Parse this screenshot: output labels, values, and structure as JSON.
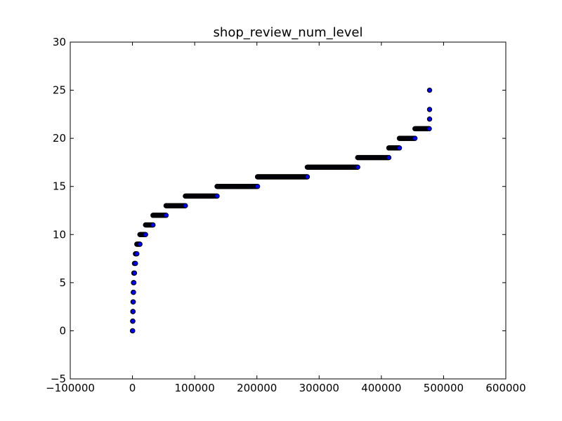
{
  "chart_data": {
    "type": "scatter",
    "title": "shop_review_num_level",
    "xlabel": "",
    "ylabel": "",
    "xlim": [
      -100000,
      600000
    ],
    "ylim": [
      -5,
      30
    ],
    "xticks": [
      -100000,
      0,
      100000,
      200000,
      300000,
      400000,
      500000,
      600000
    ],
    "yticks": [
      -5,
      0,
      5,
      10,
      15,
      20,
      25,
      30
    ],
    "xtick_labels": [
      "−100000",
      "0",
      "100000",
      "200000",
      "300000",
      "400000",
      "500000",
      "600000"
    ],
    "ytick_labels": [
      "−5",
      "0",
      "5",
      "10",
      "15",
      "20",
      "25",
      "30"
    ],
    "grid": false,
    "marker_color": "#0000ff",
    "marker_edge_color": "#000000",
    "series": [
      {
        "note_runs": "each run is a level (y) spanning a contiguous x range of sorted sample indices",
        "runs": [
          {
            "y": 0,
            "x_start": 0,
            "x_end": 300
          },
          {
            "y": 1,
            "x_start": 300,
            "x_end": 600
          },
          {
            "y": 2,
            "x_start": 600,
            "x_end": 900
          },
          {
            "y": 3,
            "x_start": 900,
            "x_end": 1300
          },
          {
            "y": 4,
            "x_start": 1300,
            "x_end": 1700
          },
          {
            "y": 5,
            "x_start": 1700,
            "x_end": 2200
          },
          {
            "y": 6,
            "x_start": 2200,
            "x_end": 3200
          },
          {
            "y": 7,
            "x_start": 3200,
            "x_end": 4800
          },
          {
            "y": 8,
            "x_start": 4800,
            "x_end": 7000
          },
          {
            "y": 9,
            "x_start": 7000,
            "x_end": 12000
          },
          {
            "y": 10,
            "x_start": 12000,
            "x_end": 21000
          },
          {
            "y": 11,
            "x_start": 21000,
            "x_end": 33000
          },
          {
            "y": 12,
            "x_start": 33000,
            "x_end": 54000
          },
          {
            "y": 13,
            "x_start": 54000,
            "x_end": 85000
          },
          {
            "y": 14,
            "x_start": 85000,
            "x_end": 136000
          },
          {
            "y": 15,
            "x_start": 136000,
            "x_end": 201000
          },
          {
            "y": 16,
            "x_start": 201000,
            "x_end": 281000
          },
          {
            "y": 17,
            "x_start": 281000,
            "x_end": 362000
          },
          {
            "y": 18,
            "x_start": 362000,
            "x_end": 412000
          },
          {
            "y": 19,
            "x_start": 412000,
            "x_end": 429000
          },
          {
            "y": 20,
            "x_start": 429000,
            "x_end": 454000
          },
          {
            "y": 21,
            "x_start": 454000,
            "x_end": 477000
          },
          {
            "y": 22,
            "x_start": 477500,
            "x_end": 477500
          },
          {
            "y": 23,
            "x_start": 477500,
            "x_end": 477500
          },
          {
            "y": 25,
            "x_start": 477500,
            "x_end": 477500
          }
        ]
      }
    ]
  }
}
